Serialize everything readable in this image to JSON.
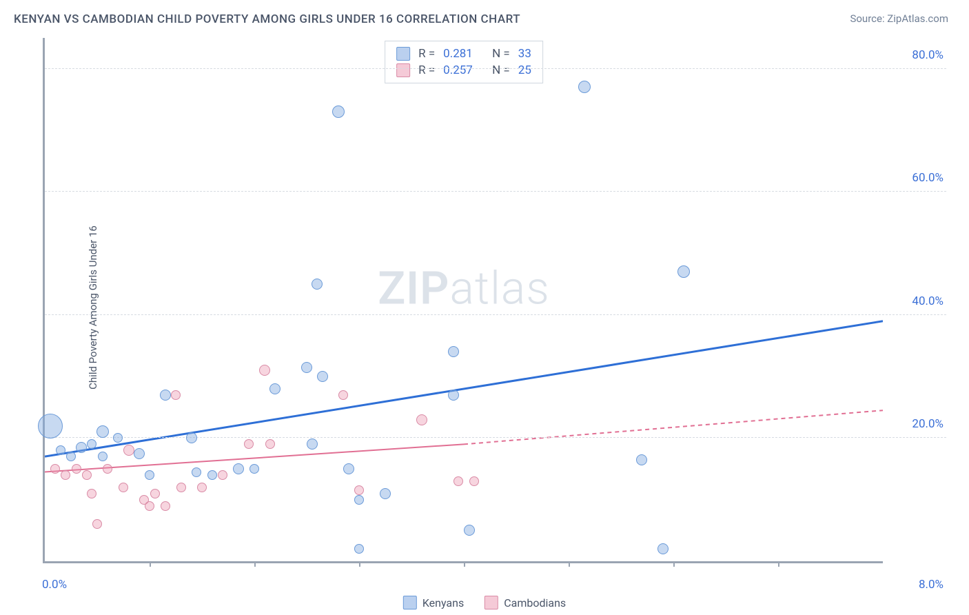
{
  "header": {
    "title": "KENYAN VS CAMBODIAN CHILD POVERTY AMONG GIRLS UNDER 16 CORRELATION CHART",
    "source": "Source: ZipAtlas.com"
  },
  "y_axis_label": "Child Poverty Among Girls Under 16",
  "watermark": {
    "left": "ZIP",
    "right": "atlas"
  },
  "chart": {
    "type": "scatter",
    "xlim": [
      0,
      8
    ],
    "ylim": [
      0,
      85
    ],
    "y_ticks": [
      20,
      40,
      60,
      80
    ],
    "y_tick_labels": [
      "20.0%",
      "40.0%",
      "60.0%",
      "80.0%"
    ],
    "x_ticks_minor": [
      1,
      2,
      3,
      4,
      5,
      6,
      7
    ],
    "x_labels": [
      {
        "x": 0,
        "text": "0.0%",
        "align": "left"
      },
      {
        "x": 8,
        "text": "8.0%",
        "align": "right"
      }
    ],
    "grid_color": "#d6dbe1",
    "axis_color": "#9aa4b2",
    "background_color": "#ffffff",
    "tick_label_color": "#3b6fd6",
    "tick_fontsize": 17
  },
  "series": {
    "kenyans": {
      "label": "Kenyans",
      "color_fill": "rgba(130,170,225,0.45)",
      "color_stroke": "#6a9ad8",
      "trend_color": "#2e6fd6",
      "trend_width": 3,
      "trend": {
        "x1": 0,
        "y1": 17,
        "x2": 8,
        "y2": 39
      },
      "R": "0.281",
      "N": "33",
      "points": [
        {
          "x": 0.05,
          "y": 22,
          "r": 18
        },
        {
          "x": 0.15,
          "y": 18,
          "r": 7
        },
        {
          "x": 0.25,
          "y": 17,
          "r": 7
        },
        {
          "x": 0.35,
          "y": 18.5,
          "r": 8
        },
        {
          "x": 0.45,
          "y": 19,
          "r": 7
        },
        {
          "x": 0.55,
          "y": 21,
          "r": 9
        },
        {
          "x": 0.55,
          "y": 17,
          "r": 7
        },
        {
          "x": 0.7,
          "y": 20,
          "r": 7
        },
        {
          "x": 0.9,
          "y": 17.5,
          "r": 8
        },
        {
          "x": 1.0,
          "y": 14,
          "r": 7
        },
        {
          "x": 1.15,
          "y": 27,
          "r": 8
        },
        {
          "x": 1.4,
          "y": 20,
          "r": 8
        },
        {
          "x": 1.45,
          "y": 14.5,
          "r": 7
        },
        {
          "x": 1.6,
          "y": 14,
          "r": 7
        },
        {
          "x": 1.85,
          "y": 15,
          "r": 8
        },
        {
          "x": 2.0,
          "y": 15,
          "r": 7
        },
        {
          "x": 2.2,
          "y": 28,
          "r": 8
        },
        {
          "x": 2.5,
          "y": 31.5,
          "r": 8
        },
        {
          "x": 2.55,
          "y": 19,
          "r": 8
        },
        {
          "x": 2.6,
          "y": 45,
          "r": 8
        },
        {
          "x": 2.65,
          "y": 30,
          "r": 8
        },
        {
          "x": 2.8,
          "y": 73,
          "r": 9
        },
        {
          "x": 2.9,
          "y": 15,
          "r": 8
        },
        {
          "x": 3.0,
          "y": 10,
          "r": 7
        },
        {
          "x": 3.0,
          "y": 2,
          "r": 7
        },
        {
          "x": 3.25,
          "y": 11,
          "r": 8
        },
        {
          "x": 3.9,
          "y": 34,
          "r": 8
        },
        {
          "x": 3.9,
          "y": 27,
          "r": 8
        },
        {
          "x": 4.05,
          "y": 5,
          "r": 8
        },
        {
          "x": 5.15,
          "y": 77,
          "r": 9
        },
        {
          "x": 5.7,
          "y": 16.5,
          "r": 8
        },
        {
          "x": 5.9,
          "y": 2,
          "r": 8
        },
        {
          "x": 6.1,
          "y": 47,
          "r": 9
        }
      ]
    },
    "cambodians": {
      "label": "Cambodians",
      "color_fill": "rgba(235,150,175,0.4)",
      "color_stroke": "#d98aa5",
      "trend_color": "#e16f93",
      "trend_width": 2,
      "trend_solid": {
        "x1": 0,
        "y1": 14.5,
        "x2": 4,
        "y2": 19
      },
      "trend_dashed": {
        "x1": 4,
        "y1": 19,
        "x2": 8,
        "y2": 24.5
      },
      "R": "0.257",
      "N": "25",
      "points": [
        {
          "x": 0.1,
          "y": 15,
          "r": 7
        },
        {
          "x": 0.2,
          "y": 14,
          "r": 7
        },
        {
          "x": 0.3,
          "y": 15,
          "r": 7
        },
        {
          "x": 0.4,
          "y": 14,
          "r": 7
        },
        {
          "x": 0.45,
          "y": 11,
          "r": 7
        },
        {
          "x": 0.5,
          "y": 6,
          "r": 7
        },
        {
          "x": 0.6,
          "y": 15,
          "r": 7
        },
        {
          "x": 0.75,
          "y": 12,
          "r": 7
        },
        {
          "x": 0.8,
          "y": 18,
          "r": 8
        },
        {
          "x": 0.95,
          "y": 10,
          "r": 7
        },
        {
          "x": 1.0,
          "y": 9,
          "r": 7
        },
        {
          "x": 1.05,
          "y": 11,
          "r": 7
        },
        {
          "x": 1.15,
          "y": 9,
          "r": 7
        },
        {
          "x": 1.25,
          "y": 27,
          "r": 7
        },
        {
          "x": 1.3,
          "y": 12,
          "r": 7
        },
        {
          "x": 1.5,
          "y": 12,
          "r": 7
        },
        {
          "x": 1.7,
          "y": 14,
          "r": 7
        },
        {
          "x": 1.95,
          "y": 19,
          "r": 7
        },
        {
          "x": 2.1,
          "y": 31,
          "r": 8
        },
        {
          "x": 2.15,
          "y": 19,
          "r": 7
        },
        {
          "x": 2.85,
          "y": 27,
          "r": 7
        },
        {
          "x": 3.0,
          "y": 11.5,
          "r": 7
        },
        {
          "x": 3.6,
          "y": 23,
          "r": 8
        },
        {
          "x": 3.95,
          "y": 13,
          "r": 7
        },
        {
          "x": 4.1,
          "y": 13,
          "r": 7
        }
      ]
    }
  },
  "legend_top": {
    "rows": [
      {
        "swatch": "blue",
        "r_label": "R =",
        "r_val": "0.281",
        "n_label": "N =",
        "n_val": "33"
      },
      {
        "swatch": "pink",
        "r_label": "R =",
        "r_val": "0.257",
        "n_label": "N =",
        "n_val": "25"
      }
    ]
  },
  "legend_bottom": [
    {
      "swatch": "blue",
      "label": "Kenyans"
    },
    {
      "swatch": "pink",
      "label": "Cambodians"
    }
  ]
}
